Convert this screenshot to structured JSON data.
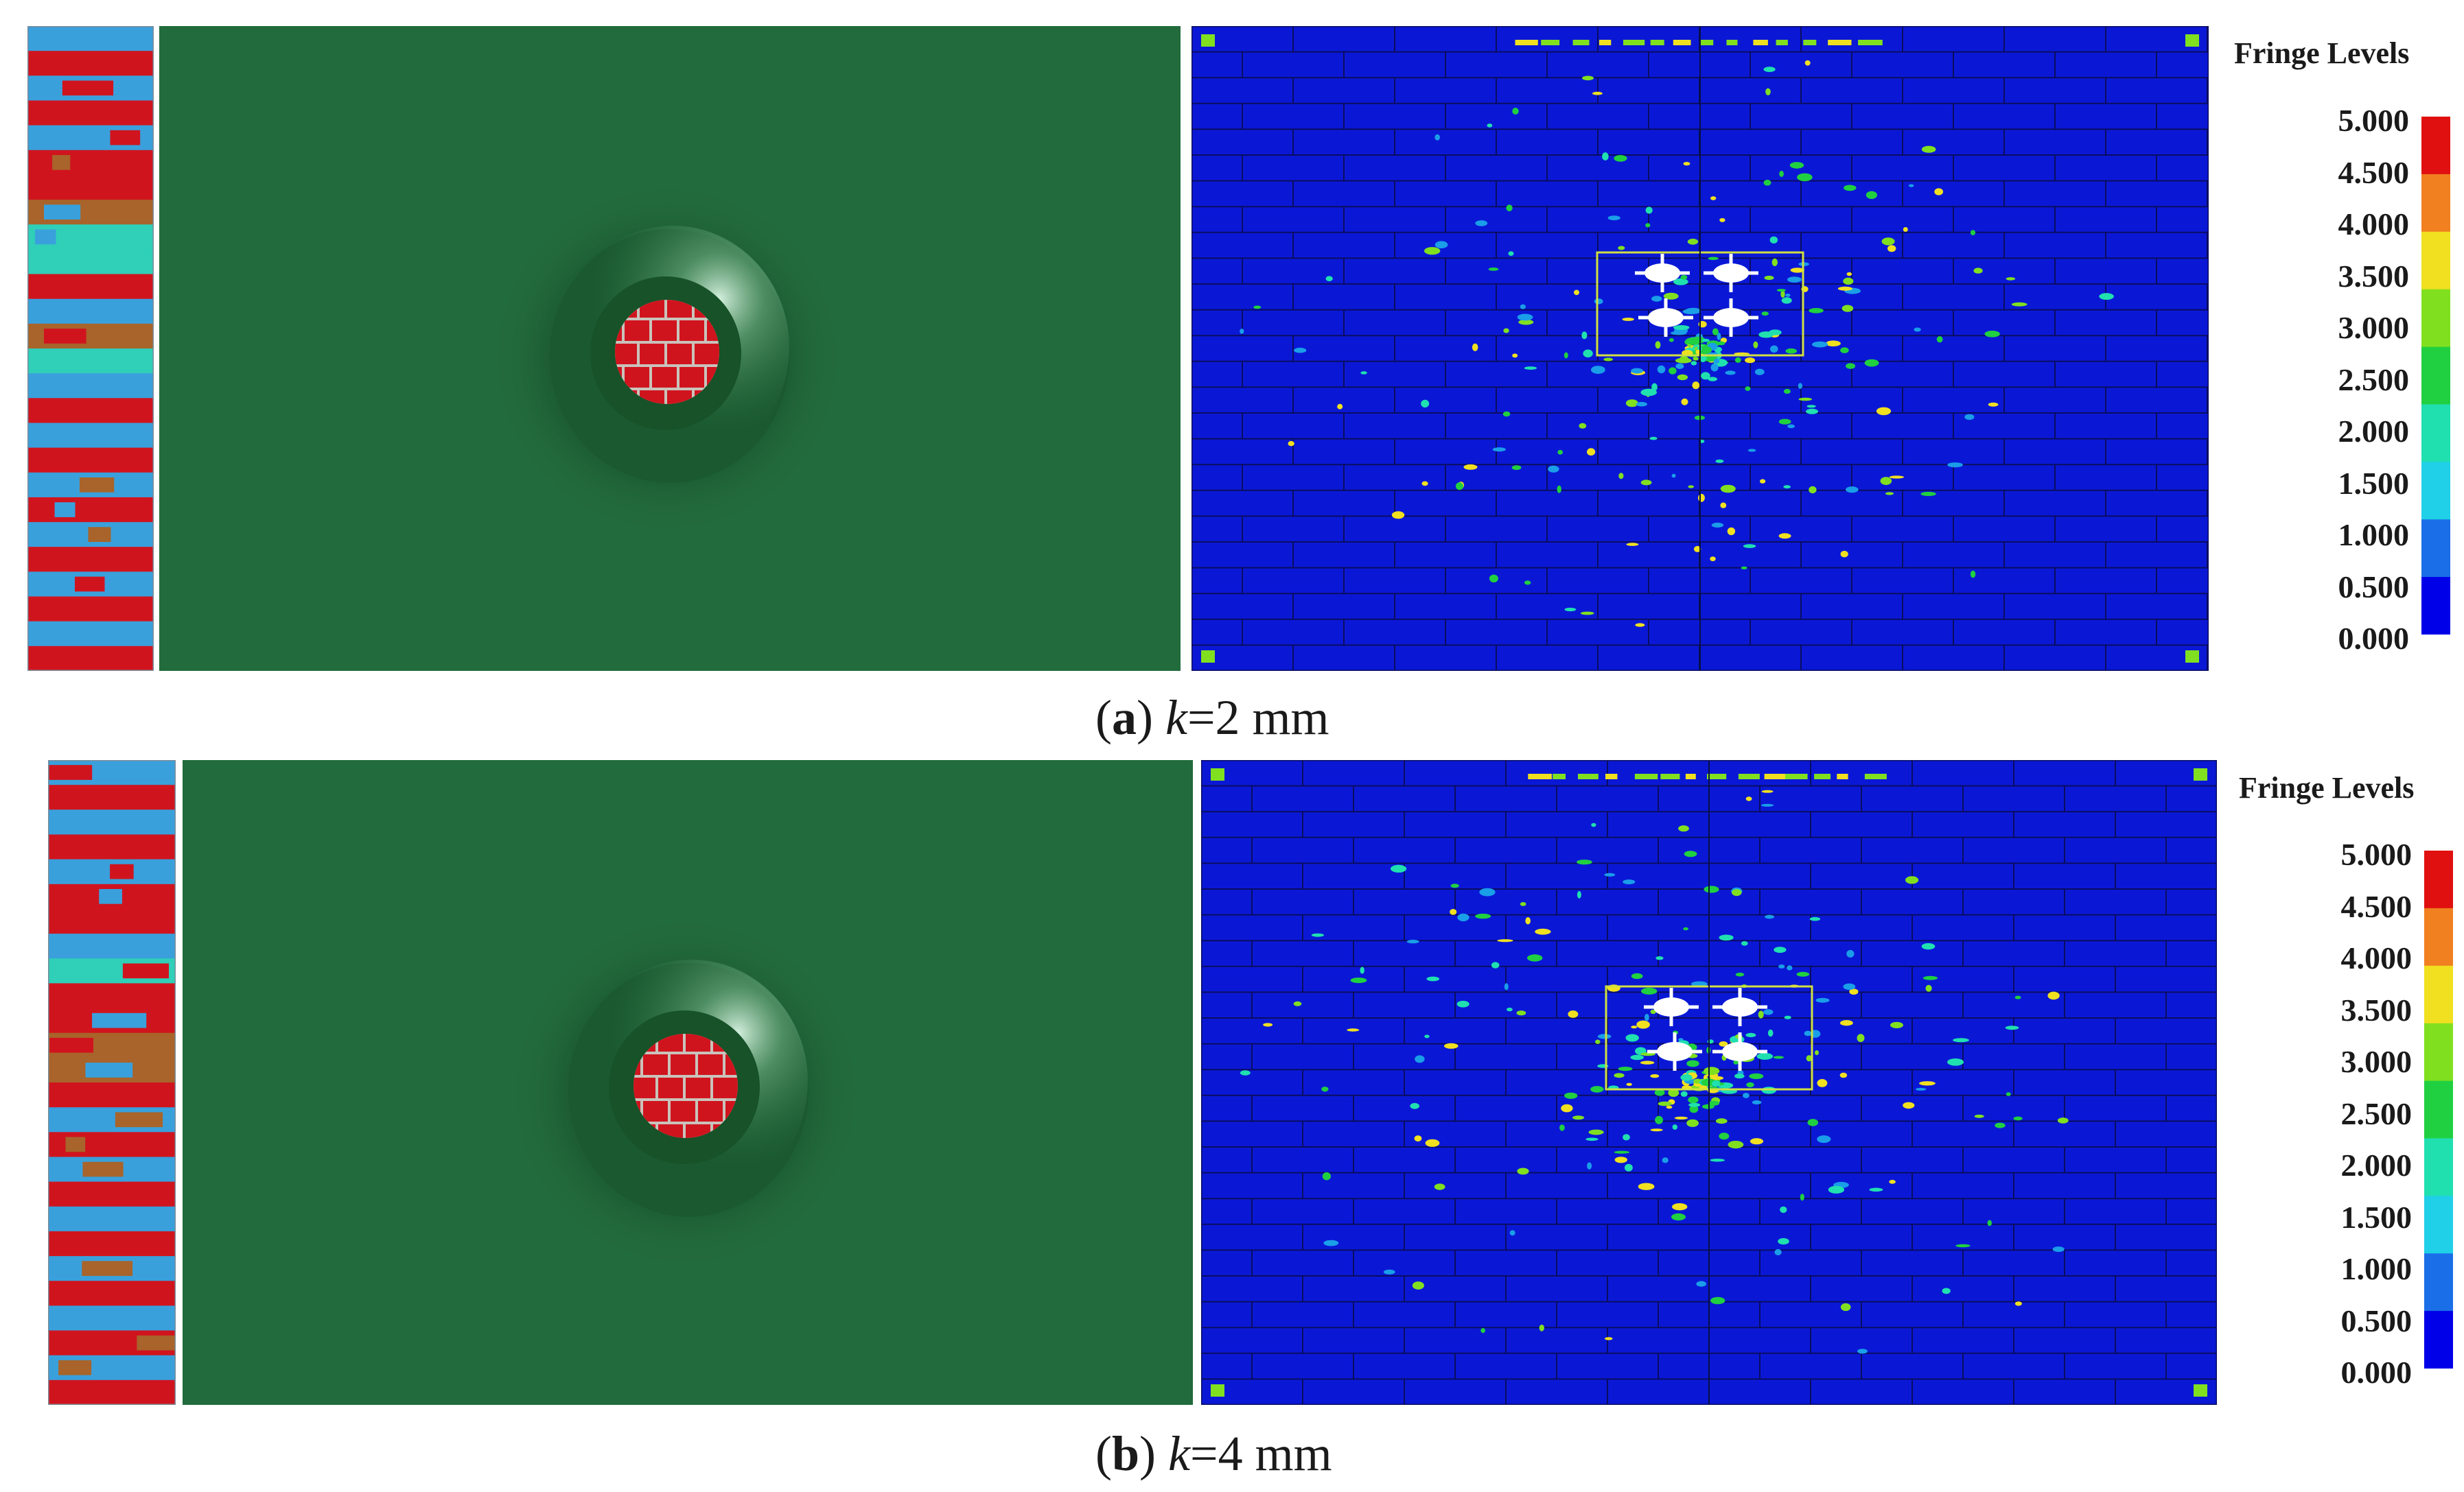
{
  "colors": {
    "strip_red": "#d0141e",
    "strip_blue": "#3aa0dc",
    "strip_brown": "#a8642a",
    "strip_teal": "#2fcfb8",
    "green_panel": "#226b3c",
    "fringe_blue": "#0a18d6",
    "fringe_scale": [
      "#0000e8",
      "#1a6ee8",
      "#20d0e8",
      "#20e0b0",
      "#20d040",
      "#80e020",
      "#f0e020",
      "#f08020",
      "#e01010"
    ]
  },
  "panels": [
    {
      "id": "a",
      "caption_letter": "a",
      "caption_var": "k",
      "caption_value": "=2 mm",
      "fringe_title": "Fringe Levels",
      "fringe_labels": [
        "5.000",
        "4.500",
        "4.000",
        "3.500",
        "3.000",
        "2.500",
        "2.000",
        "1.500",
        "1.000",
        "0.500",
        "0.000"
      ]
    },
    {
      "id": "b",
      "caption_letter": "b",
      "caption_var": "k",
      "caption_value": "=4 mm",
      "fringe_title": "Fringe Levels",
      "fringe_labels": [
        "5.000",
        "4.500",
        "4.000",
        "3.500",
        "3.000",
        "2.500",
        "2.000",
        "1.500",
        "1.000",
        "0.500",
        "0.000"
      ]
    }
  ]
}
